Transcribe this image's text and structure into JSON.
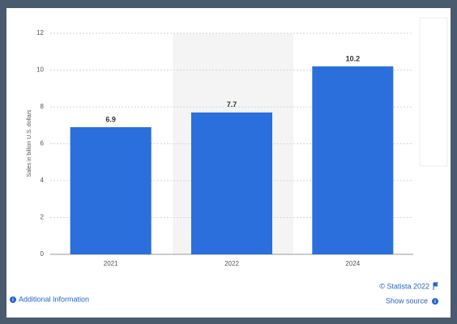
{
  "chart_data": {
    "type": "bar",
    "y_label": "Sales in billion U.S. dollars",
    "categories": [
      "2021",
      "2022",
      "2024"
    ],
    "values": [
      6.9,
      7.7,
      10.2
    ],
    "color": "#2a6fdb",
    "ylim": [
      0,
      12
    ],
    "yticks": [
      0,
      2,
      4,
      6,
      8,
      10,
      12
    ],
    "grid": true,
    "copyright": "© Statista 2022",
    "additional_info": "Additional Information",
    "show_source": "Show source"
  }
}
